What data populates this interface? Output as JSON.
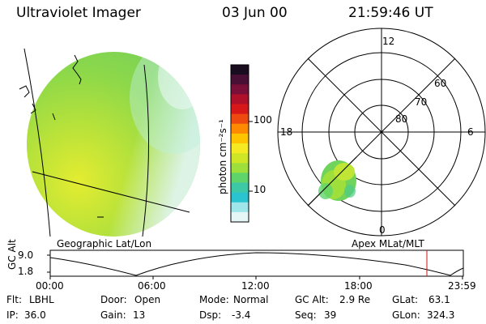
{
  "header": {
    "instrument": "Ultraviolet Imager",
    "date": "03 Jun 00",
    "time": "21:59:46 UT"
  },
  "colorbar": {
    "unit_label": "photon cm⁻²s⁻¹",
    "tick_labels": [
      "100",
      "10"
    ],
    "colors": [
      "#1a0c1f",
      "#4a0f35",
      "#7a0f3a",
      "#b0102a",
      "#d81818",
      "#ee4a10",
      "#ff8a00",
      "#ffc400",
      "#f6ea22",
      "#cfe626",
      "#9fdf3c",
      "#5fd46a",
      "#3ec9a6",
      "#2ac4d0",
      "#9ee6ea",
      "#e6f6f6"
    ]
  },
  "left_panel": {
    "label": "Geographic Lat/Lon"
  },
  "right_panel": {
    "label": "Apex MLat/MLT",
    "mlt_labels": [
      "12",
      "18",
      "6",
      "0"
    ],
    "mlat_labels": [
      "60",
      "70",
      "80"
    ]
  },
  "altitude_plot": {
    "ylabel": "GC Alt",
    "y_ticks": [
      "9.0",
      "1.8"
    ],
    "x_ticks": [
      "00:00",
      "06:00",
      "12:00",
      "18:00",
      "23:59"
    ],
    "current_time_color": "#d01010"
  },
  "info_rows": [
    [
      {
        "label": "Flt:",
        "value": "LBHL"
      },
      {
        "label": "Door:",
        "value": "Open"
      },
      {
        "label": "Mode:",
        "value": "Normal"
      },
      {
        "label": "GC Alt:",
        "value": "2.9 Re"
      },
      {
        "label": "GLat:",
        "value": "63.1"
      }
    ],
    [
      {
        "label": "IP:",
        "value": "36.0"
      },
      {
        "label": "Gain:",
        "value": "13"
      },
      {
        "label": "Dsp:",
        "value": "-3.4"
      },
      {
        "label": "Seq:",
        "value": "39"
      },
      {
        "label": "GLon:",
        "value": "324.3"
      }
    ]
  ]
}
